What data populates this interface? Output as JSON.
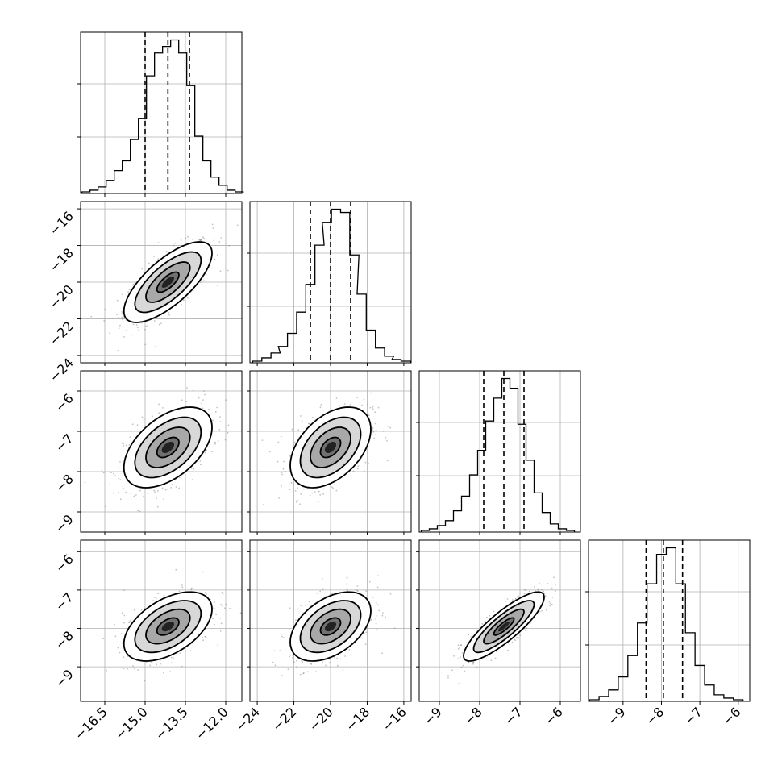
{
  "chart_data": {
    "type": "scatter",
    "title": "",
    "parameters": [
      {
        "index": 0,
        "range": [
          -17.4,
          -11.4
        ],
        "ticks": [
          -16.5,
          -15.0,
          -13.5,
          -12.0
        ],
        "tick_labels": [
          "−16.5",
          "−15.0",
          "−13.5",
          "−12.0"
        ],
        "mean": -14.15,
        "sd": 0.82,
        "quantiles": [
          -15.0,
          -14.15,
          -13.35
        ]
      },
      {
        "index": 1,
        "range": [
          -24.4,
          -15.6
        ],
        "ticks": [
          -24,
          -22,
          -20,
          -18,
          -16
        ],
        "tick_labels": [
          "−24",
          "−22",
          "−20",
          "−18",
          "−16"
        ],
        "mean": -20.0,
        "sd": 1.1,
        "quantiles": [
          -21.1,
          -20.0,
          -18.9
        ]
      },
      {
        "index": 2,
        "range": [
          -9.5,
          -5.5
        ],
        "ticks": [
          -9,
          -8,
          -7,
          -6
        ],
        "tick_labels": [
          "−9",
          "−8",
          "−7",
          "−6"
        ],
        "mean": -7.4,
        "sd": 0.5,
        "quantiles": [
          -7.9,
          -7.4,
          -6.9
        ]
      },
      {
        "index": 3,
        "range": [
          -9.9,
          -5.7
        ],
        "ticks": [
          -9,
          -8,
          -7,
          -6
        ],
        "tick_labels": [
          "−9",
          "−8",
          "−7",
          "−6"
        ],
        "mean": -7.95,
        "sd": 0.45,
        "quantiles": [
          -8.4,
          -7.95,
          -7.45
        ]
      }
    ],
    "correlations": [
      [
        1.0,
        0.72,
        0.5,
        0.5
      ],
      [
        0.72,
        1.0,
        0.45,
        0.45
      ],
      [
        0.5,
        0.45,
        1.0,
        0.85
      ],
      [
        0.5,
        0.45,
        0.85,
        1.0
      ]
    ],
    "histograms": [
      {
        "param": 0,
        "bins": [
          {
            "x": -17.2,
            "count": 0.01
          },
          {
            "x": -16.9,
            "count": 0.02
          },
          {
            "x": -16.6,
            "count": 0.04
          },
          {
            "x": -16.3,
            "count": 0.08
          },
          {
            "x": -16.0,
            "count": 0.14
          },
          {
            "x": -15.7,
            "count": 0.2
          },
          {
            "x": -15.4,
            "count": 0.33
          },
          {
            "x": -15.1,
            "count": 0.46
          },
          {
            "x": -14.8,
            "count": 0.72
          },
          {
            "x": -14.5,
            "count": 0.86
          },
          {
            "x": -14.2,
            "count": 0.9
          },
          {
            "x": -13.9,
            "count": 0.94
          },
          {
            "x": -13.6,
            "count": 0.86
          },
          {
            "x": -13.3,
            "count": 0.66
          },
          {
            "x": -13.0,
            "count": 0.35
          },
          {
            "x": -12.7,
            "count": 0.2
          },
          {
            "x": -12.4,
            "count": 0.1
          },
          {
            "x": -12.1,
            "count": 0.05
          },
          {
            "x": -11.8,
            "count": 0.02
          },
          {
            "x": -11.5,
            "count": 0.01
          }
        ]
      },
      {
        "param": 1,
        "bins": [
          {
            "x": -24.0,
            "count": 0.01
          },
          {
            "x": -23.5,
            "count": 0.03
          },
          {
            "x": -23.0,
            "count": 0.06
          },
          {
            "x": -22.6,
            "count": 0.1
          },
          {
            "x": -22.1,
            "count": 0.18
          },
          {
            "x": -21.6,
            "count": 0.31
          },
          {
            "x": -21.1,
            "count": 0.48
          },
          {
            "x": -20.6,
            "count": 0.72
          },
          {
            "x": -20.2,
            "count": 0.86
          },
          {
            "x": -19.7,
            "count": 0.94
          },
          {
            "x": -19.2,
            "count": 0.92
          },
          {
            "x": -18.7,
            "count": 0.66
          },
          {
            "x": -18.3,
            "count": 0.42
          },
          {
            "x": -17.8,
            "count": 0.2
          },
          {
            "x": -17.3,
            "count": 0.09
          },
          {
            "x": -16.8,
            "count": 0.04
          },
          {
            "x": -16.4,
            "count": 0.02
          },
          {
            "x": -15.9,
            "count": 0.01
          }
        ]
      },
      {
        "param": 2,
        "bins": [
          {
            "x": -9.35,
            "count": 0.01
          },
          {
            "x": -9.15,
            "count": 0.02
          },
          {
            "x": -8.95,
            "count": 0.04
          },
          {
            "x": -8.75,
            "count": 0.07
          },
          {
            "x": -8.55,
            "count": 0.13
          },
          {
            "x": -8.35,
            "count": 0.22
          },
          {
            "x": -8.15,
            "count": 0.35
          },
          {
            "x": -7.95,
            "count": 0.5
          },
          {
            "x": -7.75,
            "count": 0.68
          },
          {
            "x": -7.55,
            "count": 0.82
          },
          {
            "x": -7.35,
            "count": 0.94
          },
          {
            "x": -7.15,
            "count": 0.88
          },
          {
            "x": -6.95,
            "count": 0.66
          },
          {
            "x": -6.75,
            "count": 0.44
          },
          {
            "x": -6.55,
            "count": 0.24
          },
          {
            "x": -6.35,
            "count": 0.12
          },
          {
            "x": -6.15,
            "count": 0.05
          },
          {
            "x": -5.95,
            "count": 0.02
          },
          {
            "x": -5.75,
            "count": 0.01
          }
        ]
      },
      {
        "param": 3,
        "bins": [
          {
            "x": -9.75,
            "count": 0.01
          },
          {
            "x": -9.5,
            "count": 0.03
          },
          {
            "x": -9.25,
            "count": 0.07
          },
          {
            "x": -9.0,
            "count": 0.15
          },
          {
            "x": -8.75,
            "count": 0.28
          },
          {
            "x": -8.5,
            "count": 0.48
          },
          {
            "x": -8.25,
            "count": 0.72
          },
          {
            "x": -8.0,
            "count": 0.9
          },
          {
            "x": -7.75,
            "count": 0.94
          },
          {
            "x": -7.5,
            "count": 0.72
          },
          {
            "x": -7.25,
            "count": 0.42
          },
          {
            "x": -7.0,
            "count": 0.22
          },
          {
            "x": -6.75,
            "count": 0.1
          },
          {
            "x": -6.5,
            "count": 0.04
          },
          {
            "x": -6.25,
            "count": 0.02
          },
          {
            "x": -6.0,
            "count": 0.01
          }
        ]
      }
    ],
    "contour_levels_sigma": [
      0.5,
      1.0,
      1.5,
      2.0
    ],
    "scatter_points_per_panel": 650,
    "grid": true,
    "colors": {
      "line": "#000000",
      "grid": "#b0b0b0",
      "points": "#7a7a7a",
      "density_light": "#e0e0e0",
      "density_dark": "#000000"
    }
  }
}
